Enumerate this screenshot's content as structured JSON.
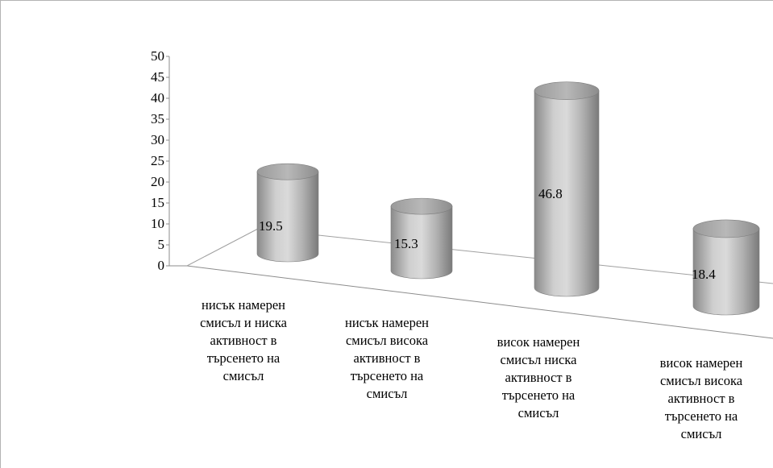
{
  "chart_data": {
    "type": "bar",
    "style": "3d-cylinder",
    "categories": [
      "нисък намерен смисъл и ниска активност в търсенето на смисъл",
      "нисък намерен смисъл висока активност в търсенето на смисъл",
      "висок намерен смисъл ниска активност в търсенето на смисъл",
      "висок намерен смисъл висока активност в търсенето на смисъл"
    ],
    "values": [
      19.5,
      15.3,
      46.8,
      18.4
    ],
    "data_labels": [
      "19.5",
      "15.3",
      "46.8",
      "18.4"
    ],
    "title": "",
    "xlabel": "",
    "ylabel": "",
    "ylim": [
      0,
      50
    ],
    "yticks": [
      "0",
      "5",
      "10",
      "15",
      "20",
      "25",
      "30",
      "35",
      "40",
      "45",
      "50"
    ],
    "grid": false,
    "legend": "none",
    "bar_color": "#b4b4b4"
  }
}
